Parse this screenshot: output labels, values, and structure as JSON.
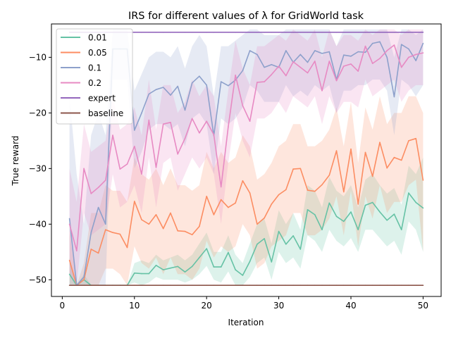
{
  "chart_data": {
    "type": "line",
    "title": "IRS for different values of λ for GridWorld task",
    "xlabel": "Iteration",
    "ylabel": "True reward",
    "xlim": [
      -1.5,
      52.5
    ],
    "ylim": [
      -53,
      -4
    ],
    "xticks": [
      0,
      10,
      20,
      30,
      40,
      50
    ],
    "yticks": [
      -50,
      -40,
      -30,
      -20,
      -10
    ],
    "grid": false,
    "legend_position": "top-left",
    "x": [
      1,
      2,
      3,
      4,
      5,
      6,
      7,
      8,
      9,
      10,
      11,
      12,
      13,
      14,
      15,
      16,
      17,
      18,
      19,
      20,
      21,
      22,
      23,
      24,
      25,
      26,
      27,
      28,
      29,
      30,
      31,
      32,
      33,
      34,
      35,
      36,
      37,
      38,
      39,
      40,
      41,
      42,
      43,
      44,
      45,
      46,
      47,
      48,
      49,
      50
    ],
    "series": [
      {
        "name": "0.01",
        "color": "#66c2a5",
        "values": [
          -49,
          -51,
          -50,
          -51,
          -51,
          -51,
          -51,
          -51,
          -51,
          -48.8,
          -48.9,
          -48.9,
          -47.4,
          -48.2,
          -47.9,
          -47.6,
          -48.6,
          -47.6,
          -46,
          -44.4,
          -47.7,
          -47.7,
          -45.1,
          -48.2,
          -49.2,
          -46.7,
          -43.6,
          -42.6,
          -46.8,
          -41.3,
          -43.6,
          -42.1,
          -44.5,
          -37.4,
          -38.3,
          -41,
          -36.2,
          -38.6,
          -39.5,
          -37.8,
          -41,
          -36.6,
          -36.1,
          -37.8,
          -39.3,
          -38.2,
          -41,
          -34.4,
          -36.1,
          -37.1
        ],
        "band": [
          [
            -51,
            -46
          ],
          [
            -51,
            -51
          ],
          [
            -51,
            -49
          ],
          [
            -51,
            -51
          ],
          [
            -51,
            -51
          ],
          [
            -51,
            -51
          ],
          [
            -51,
            -51
          ],
          [
            -51,
            -51
          ],
          [
            -51,
            -51
          ],
          [
            -50.5,
            -47
          ],
          [
            -51,
            -46.5
          ],
          [
            -50.5,
            -47
          ],
          [
            -49.5,
            -45.5
          ],
          [
            -50,
            -46.5
          ],
          [
            -50,
            -46
          ],
          [
            -50,
            -45.5
          ],
          [
            -50.5,
            -46.5
          ],
          [
            -50,
            -45.5
          ],
          [
            -49,
            -43.5
          ],
          [
            -47.5,
            -41.5
          ],
          [
            -50,
            -45
          ],
          [
            -50.5,
            -45
          ],
          [
            -48.5,
            -42
          ],
          [
            -51,
            -45.5
          ],
          [
            -51,
            -47
          ],
          [
            -49.5,
            -43.5
          ],
          [
            -47,
            -40
          ],
          [
            -46,
            -39
          ],
          [
            -50,
            -43.5
          ],
          [
            -45,
            -37.5
          ],
          [
            -47,
            -40
          ],
          [
            -46,
            -38
          ],
          [
            -48,
            -41
          ],
          [
            -42,
            -33
          ],
          [
            -43,
            -34
          ],
          [
            -45,
            -37
          ],
          [
            -41,
            -31.5
          ],
          [
            -43,
            -34
          ],
          [
            -44,
            -35
          ],
          [
            -42.5,
            -33
          ],
          [
            -45,
            -37
          ],
          [
            -41,
            -32
          ],
          [
            -41,
            -31
          ],
          [
            -42.5,
            -33
          ],
          [
            -44,
            -34.5
          ],
          [
            -43,
            -33.5
          ],
          [
            -45.5,
            -36.5
          ],
          [
            -39.5,
            -29.5
          ],
          [
            -41,
            -31
          ],
          [
            -45,
            -28
          ]
        ]
      },
      {
        "name": "0.05",
        "color": "#fc8d62",
        "values": [
          -46.5,
          -51,
          -50,
          -44.5,
          -45.2,
          -41,
          -41.5,
          -41.8,
          -44.2,
          -35.9,
          -39.2,
          -40,
          -38.3,
          -40.8,
          -38,
          -41.2,
          -41.3,
          -41.9,
          -40.4,
          -35,
          -38.3,
          -35.6,
          -37,
          -36.2,
          -32.2,
          -34.4,
          -40,
          -38.9,
          -36.4,
          -34.7,
          -33.8,
          -30.1,
          -30,
          -33.9,
          -34.1,
          -32.9,
          -31.2,
          -26.8,
          -34.2,
          -26.5,
          -36.4,
          -27.1,
          -31.4,
          -25.3,
          -29.9,
          -28,
          -28.5,
          -25,
          -24.6,
          -32.1
        ],
        "band": [
          [
            -51,
            -41
          ],
          [
            -51,
            -51
          ],
          [
            -51,
            -47
          ],
          [
            -51,
            -38
          ],
          [
            -51,
            -38
          ],
          [
            -48,
            -33
          ],
          [
            -48,
            -34
          ],
          [
            -49,
            -34
          ],
          [
            -51,
            -36
          ],
          [
            -44,
            -28
          ],
          [
            -47,
            -31
          ],
          [
            -48,
            -32
          ],
          [
            -46,
            -30
          ],
          [
            -49,
            -33
          ],
          [
            -46,
            -30
          ],
          [
            -49,
            -33
          ],
          [
            -49,
            -33
          ],
          [
            -50,
            -34
          ],
          [
            -48,
            -33
          ],
          [
            -43,
            -27
          ],
          [
            -46,
            -30
          ],
          [
            -44,
            -27
          ],
          [
            -45,
            -29
          ],
          [
            -44,
            -28
          ],
          [
            -40,
            -24
          ],
          [
            -42,
            -26
          ],
          [
            -48,
            -32
          ],
          [
            -47,
            -31
          ],
          [
            -44,
            -29
          ],
          [
            -43,
            -26
          ],
          [
            -42,
            -25
          ],
          [
            -38,
            -22
          ],
          [
            -38,
            -22
          ],
          [
            -42,
            -26
          ],
          [
            -42,
            -26
          ],
          [
            -41,
            -25
          ],
          [
            -39,
            -23
          ],
          [
            -35,
            -19
          ],
          [
            -42,
            -26
          ],
          [
            -34,
            -18
          ],
          [
            -44,
            -29
          ],
          [
            -35,
            -19
          ],
          [
            -39,
            -23
          ],
          [
            -33,
            -17
          ],
          [
            -38,
            -22
          ],
          [
            -36,
            -20
          ],
          [
            -36,
            -20
          ],
          [
            -33,
            -17
          ],
          [
            -32,
            -17
          ],
          [
            -45,
            -20
          ]
        ]
      },
      {
        "name": "0.1",
        "color": "#8da0cb",
        "values": [
          -39,
          -51,
          -49.5,
          -41.5,
          -37,
          -40,
          -8.5,
          -8.5,
          -8.5,
          -23.1,
          -20,
          -16.6,
          -15.8,
          -15.4,
          -16.8,
          -15.2,
          -19.5,
          -14.6,
          -13.4,
          -15,
          -24.1,
          -14.4,
          -15.1,
          -14.1,
          -12.4,
          -8.8,
          -9.5,
          -11.8,
          -11.3,
          -11.8,
          -8.8,
          -10.9,
          -9.5,
          -10.9,
          -8.8,
          -9.3,
          -9,
          -14,
          -9.6,
          -9.8,
          -9,
          -9.1,
          -7.5,
          -7.2,
          -10,
          -17.1,
          -7.7,
          -8.5,
          -10.6,
          -7.5
        ],
        "band": [
          [
            -51,
            -17
          ],
          [
            -51,
            -31
          ],
          [
            -51,
            -40
          ],
          [
            -51,
            -24
          ],
          [
            -51,
            -20
          ],
          [
            -51,
            -24
          ],
          [
            -14,
            -5
          ],
          [
            -14,
            -5
          ],
          [
            -14,
            -5
          ],
          [
            -30,
            -16
          ],
          [
            -27,
            -13
          ],
          [
            -23,
            -10
          ],
          [
            -22,
            -9
          ],
          [
            -22,
            -9
          ],
          [
            -23,
            -10
          ],
          [
            -22,
            -8
          ],
          [
            -26,
            -12
          ],
          [
            -21,
            -8
          ],
          [
            -20,
            -6
          ],
          [
            -22,
            -8
          ],
          [
            -31,
            -17
          ],
          [
            -21,
            -8
          ],
          [
            -22,
            -8
          ],
          [
            -21,
            -7
          ],
          [
            -19,
            -6
          ],
          [
            -15,
            -5
          ],
          [
            -16,
            -5
          ],
          [
            -18,
            -6
          ],
          [
            -18,
            -6
          ],
          [
            -18,
            -6
          ],
          [
            -15,
            -5
          ],
          [
            -17,
            -5
          ],
          [
            -16,
            -5
          ],
          [
            -17,
            -5
          ],
          [
            -15,
            -5
          ],
          [
            -16,
            -5
          ],
          [
            -15,
            -5
          ],
          [
            -20,
            -8
          ],
          [
            -16,
            -5
          ],
          [
            -16,
            -5
          ],
          [
            -15,
            -5
          ],
          [
            -15,
            -5
          ],
          [
            -14,
            -5
          ],
          [
            -14,
            -5
          ],
          [
            -16,
            -5
          ],
          [
            -24,
            -10
          ],
          [
            -14,
            -5
          ],
          [
            -15,
            -5
          ],
          [
            -17,
            -6
          ],
          [
            -15,
            -5
          ]
        ]
      },
      {
        "name": "0.2",
        "color": "#e78ac3",
        "values": [
          -40,
          -44.8,
          -30,
          -34.5,
          -33.4,
          -32.1,
          -24,
          -30.1,
          -29.2,
          -26,
          -31,
          -21.3,
          -29.8,
          -22,
          -21.7,
          -27.4,
          -24.6,
          -21,
          -23.6,
          -21.5,
          -23.9,
          -33.3,
          -22.5,
          -13.2,
          -18.7,
          -21.5,
          -14.5,
          -14.4,
          -13.1,
          -11.6,
          -13.3,
          -10.8,
          -11.8,
          -12.8,
          -10.7,
          -16,
          -10.7,
          -14.2,
          -11.6,
          -11.2,
          -12.5,
          -8,
          -11.1,
          -10.2,
          -8.8,
          -7.8,
          -11.8,
          -10,
          -9.5,
          -9.2
        ],
        "band": [
          [
            -49,
            -30
          ],
          [
            -51,
            -36
          ],
          [
            -38,
            -22
          ],
          [
            -42,
            -27
          ],
          [
            -41,
            -26
          ],
          [
            -40,
            -25
          ],
          [
            -31,
            -17
          ],
          [
            -37,
            -23
          ],
          [
            -36,
            -22
          ],
          [
            -33,
            -19
          ],
          [
            -38,
            -24
          ],
          [
            -28,
            -14
          ],
          [
            -37,
            -23
          ],
          [
            -29,
            -15
          ],
          [
            -28,
            -15
          ],
          [
            -34,
            -20
          ],
          [
            -31,
            -18
          ],
          [
            -28,
            -14
          ],
          [
            -30,
            -17
          ],
          [
            -28,
            -15
          ],
          [
            -31,
            -17
          ],
          [
            -40,
            -26
          ],
          [
            -29,
            -16
          ],
          [
            -20,
            -7
          ],
          [
            -25,
            -12
          ],
          [
            -28,
            -15
          ],
          [
            -21,
            -8
          ],
          [
            -21,
            -8
          ],
          [
            -20,
            -7
          ],
          [
            -18,
            -6
          ],
          [
            -20,
            -7
          ],
          [
            -17,
            -5
          ],
          [
            -18,
            -6
          ],
          [
            -19,
            -7
          ],
          [
            -17,
            -5
          ],
          [
            -22,
            -10
          ],
          [
            -17,
            -5
          ],
          [
            -20,
            -8
          ],
          [
            -18,
            -6
          ],
          [
            -18,
            -6
          ],
          [
            -19,
            -7
          ],
          [
            -14,
            -5
          ],
          [
            -17,
            -6
          ],
          [
            -16,
            -5
          ],
          [
            -15,
            -5
          ],
          [
            -14,
            -5
          ],
          [
            -18,
            -6
          ],
          [
            -16,
            -5
          ],
          [
            -15,
            -5
          ],
          [
            -15,
            -5
          ]
        ]
      },
      {
        "name": "expert",
        "color": "#9467bd",
        "values": [
          -5.5,
          -5.5,
          -5.5,
          -5.5,
          -5.5,
          -5.5,
          -5.5,
          -5.5,
          -5.5,
          -5.5,
          -5.5,
          -5.5,
          -5.5,
          -5.5,
          -5.5,
          -5.5,
          -5.5,
          -5.5,
          -5.5,
          -5.5,
          -5.5,
          -5.5,
          -5.5,
          -5.5,
          -5.5,
          -5.5,
          -5.5,
          -5.5,
          -5.5,
          -5.5,
          -5.5,
          -5.5,
          -5.5,
          -5.5,
          -5.5,
          -5.5,
          -5.5,
          -5.5,
          -5.5,
          -5.5,
          -5.5,
          -5.5,
          -5.5,
          -5.5,
          -5.5,
          -5.5,
          -5.5,
          -5.5,
          -5.5,
          -5.5
        ]
      },
      {
        "name": "baseline",
        "color": "#8c564b",
        "values": [
          -51,
          -51,
          -51,
          -51,
          -51,
          -51,
          -51,
          -51,
          -51,
          -51,
          -51,
          -51,
          -51,
          -51,
          -51,
          -51,
          -51,
          -51,
          -51,
          -51,
          -51,
          -51,
          -51,
          -51,
          -51,
          -51,
          -51,
          -51,
          -51,
          -51,
          -51,
          -51,
          -51,
          -51,
          -51,
          -51,
          -51,
          -51,
          -51,
          -51,
          -51,
          -51,
          -51,
          -51,
          -51,
          -51,
          -51,
          -51,
          -51,
          -51
        ]
      }
    ]
  }
}
